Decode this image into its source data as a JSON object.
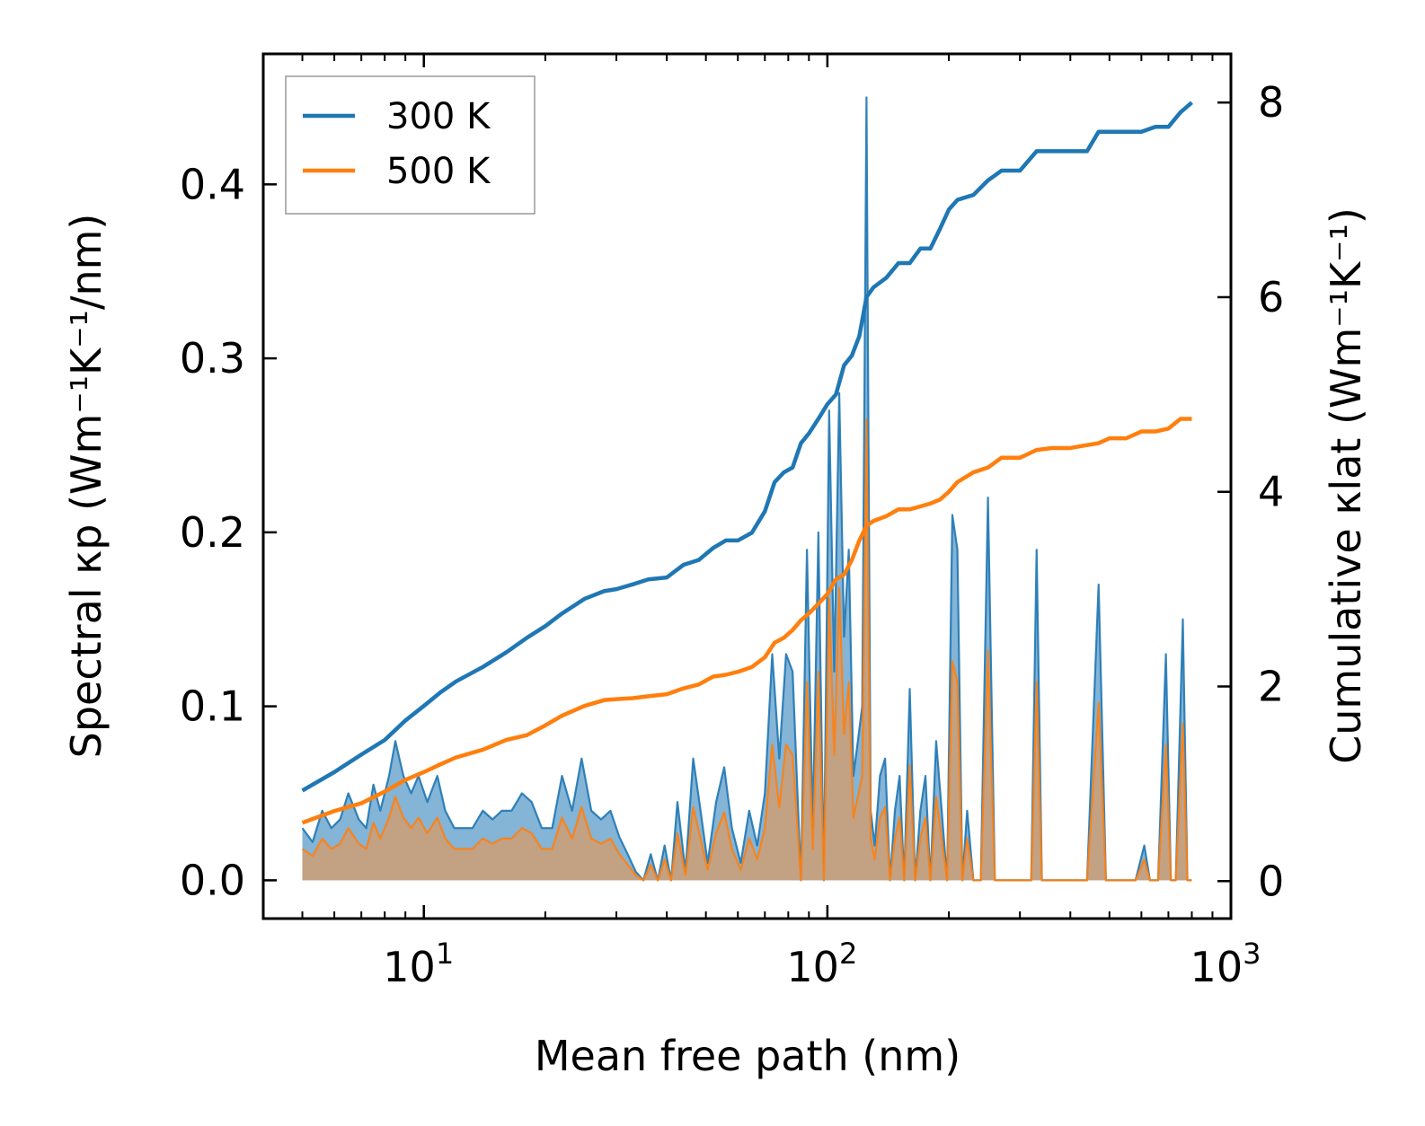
{
  "chart_data": {
    "type": "line",
    "title": "",
    "xlabel": "Mean free path (nm)",
    "ylabel_left": "Spectral κp (Wm⁻¹K⁻¹/nm)",
    "ylabel_right": "Cumulative κlat (Wm⁻¹K⁻¹)",
    "xscale": "log",
    "xlim": [
      4.0,
      1000
    ],
    "ylim_left": [
      -0.022,
      0.475
    ],
    "ylim_right": [
      -0.385,
      8.5
    ],
    "x_ticks": [
      {
        "value": 10,
        "base": "10",
        "exp": "1"
      },
      {
        "value": 100,
        "base": "10",
        "exp": "2"
      },
      {
        "value": 1000,
        "base": "10",
        "exp": "3"
      }
    ],
    "y_ticks_left": [
      {
        "value": 0.0,
        "label": "0.0"
      },
      {
        "value": 0.1,
        "label": "0.1"
      },
      {
        "value": 0.2,
        "label": "0.2"
      },
      {
        "value": 0.3,
        "label": "0.3"
      },
      {
        "value": 0.4,
        "label": "0.4"
      }
    ],
    "y_ticks_right": [
      {
        "value": 0,
        "label": "0"
      },
      {
        "value": 2,
        "label": "2"
      },
      {
        "value": 4,
        "label": "4"
      },
      {
        "value": 6,
        "label": "6"
      },
      {
        "value": 8,
        "label": "8"
      }
    ],
    "legend": {
      "position": "top-left",
      "entries": [
        "300 K",
        "500 K"
      ]
    },
    "colors": {
      "300K": "#1f77b4",
      "500K": "#ff7f0e",
      "fill_300K": "#1f77b4",
      "fill_500K": "#d39c6e"
    },
    "spectral_series": [
      {
        "name": "300 K",
        "x": [
          5.0,
          5.3,
          5.6,
          5.9,
          6.2,
          6.5,
          6.9,
          7.2,
          7.5,
          7.8,
          8.2,
          8.5,
          8.9,
          9.3,
          9.7,
          10.2,
          10.8,
          11.3,
          11.9,
          12.5,
          13.2,
          14.0,
          14.8,
          15.6,
          16.5,
          17.5,
          18.5,
          19.6,
          20.8,
          22.0,
          23.3,
          24.6,
          26.0,
          27.5,
          29.0,
          30.5,
          32.0,
          33.5,
          35.0,
          36.5,
          38.0,
          39.5,
          41.0,
          42.5,
          44.5,
          46.5,
          48.5,
          50.5,
          53.0,
          55.5,
          58.0,
          61.0,
          64.0,
          67.0,
          70.0,
          73.0,
          76.0,
          79.0,
          82.0,
          86.0,
          89.0,
          92.0,
          95.0,
          98.0,
          101.0,
          104.0,
          107.0,
          110.0,
          113.0,
          116.0,
          119.0,
          122.0,
          125.0,
          128.0,
          131.0,
          135.0,
          139.0,
          143.0,
          147.0,
          151.0,
          155.0,
          160.0,
          165.0,
          170.0,
          175.0,
          180.0,
          186.0,
          192.0,
          198.0,
          204.0,
          210.0,
          216.0,
          222.0,
          230.0,
          240.0,
          250.0,
          260.0,
          270.0,
          280.0,
          300.0,
          320.0,
          330.0,
          340.0,
          360.0,
          400.0,
          440.0,
          470.0,
          490.0,
          510.0,
          540.0,
          580.0,
          610.0,
          630.0,
          660.0,
          690.0,
          710.0,
          730.0,
          760.0,
          780.0,
          800.0
        ],
        "y": [
          0.03,
          0.022,
          0.04,
          0.03,
          0.035,
          0.05,
          0.035,
          0.03,
          0.055,
          0.04,
          0.06,
          0.08,
          0.06,
          0.05,
          0.06,
          0.045,
          0.06,
          0.04,
          0.03,
          0.03,
          0.03,
          0.04,
          0.035,
          0.04,
          0.04,
          0.05,
          0.045,
          0.03,
          0.03,
          0.06,
          0.04,
          0.07,
          0.04,
          0.035,
          0.04,
          0.025,
          0.015,
          0.005,
          0.0,
          0.015,
          0.0,
          0.02,
          0.0,
          0.045,
          0.005,
          0.07,
          0.04,
          0.01,
          0.045,
          0.065,
          0.03,
          0.01,
          0.04,
          0.02,
          0.05,
          0.13,
          0.07,
          0.13,
          0.12,
          0.0,
          0.19,
          0.03,
          0.2,
          0.0,
          0.27,
          0.12,
          0.28,
          0.14,
          0.19,
          0.06,
          0.08,
          0.1,
          0.45,
          0.04,
          0.02,
          0.06,
          0.07,
          0.0,
          0.04,
          0.06,
          0.0,
          0.11,
          0.0,
          0.04,
          0.06,
          0.0,
          0.08,
          0.04,
          0.0,
          0.21,
          0.19,
          0.0,
          0.04,
          0.0,
          0.0,
          0.22,
          0.0,
          0.0,
          0.0,
          0.0,
          0.0,
          0.19,
          0.0,
          0.0,
          0.0,
          0.0,
          0.17,
          0.0,
          0.0,
          0.0,
          0.0,
          0.02,
          0.0,
          0.0,
          0.13,
          0.0,
          0.0,
          0.15,
          0.0,
          0.0
        ]
      },
      {
        "name": "500 K",
        "x": [
          5.0,
          5.3,
          5.6,
          5.9,
          6.2,
          6.5,
          6.9,
          7.2,
          7.5,
          7.8,
          8.2,
          8.5,
          8.9,
          9.3,
          9.7,
          10.2,
          10.8,
          11.3,
          11.9,
          12.5,
          13.2,
          14.0,
          14.8,
          15.6,
          16.5,
          17.5,
          18.5,
          19.6,
          20.8,
          22.0,
          23.3,
          24.6,
          26.0,
          27.5,
          29.0,
          30.5,
          32.0,
          33.5,
          35.0,
          36.5,
          38.0,
          39.5,
          41.0,
          42.5,
          44.5,
          46.5,
          48.5,
          50.5,
          53.0,
          55.5,
          58.0,
          61.0,
          64.0,
          67.0,
          70.0,
          73.0,
          76.0,
          79.0,
          82.0,
          86.0,
          89.0,
          92.0,
          95.0,
          98.0,
          101.0,
          104.0,
          107.0,
          110.0,
          113.0,
          116.0,
          119.0,
          122.0,
          125.0,
          128.0,
          131.0,
          135.0,
          139.0,
          143.0,
          147.0,
          151.0,
          155.0,
          160.0,
          165.0,
          170.0,
          175.0,
          180.0,
          186.0,
          192.0,
          198.0,
          204.0,
          210.0,
          216.0,
          222.0,
          230.0,
          240.0,
          250.0,
          260.0,
          270.0,
          280.0,
          300.0,
          320.0,
          330.0,
          340.0,
          360.0,
          400.0,
          440.0,
          470.0,
          490.0,
          510.0,
          540.0,
          580.0,
          610.0,
          630.0,
          660.0,
          690.0,
          710.0,
          730.0,
          760.0,
          780.0,
          800.0
        ],
        "y": [
          0.018,
          0.014,
          0.024,
          0.018,
          0.021,
          0.03,
          0.021,
          0.018,
          0.033,
          0.024,
          0.036,
          0.048,
          0.036,
          0.03,
          0.036,
          0.027,
          0.036,
          0.024,
          0.018,
          0.018,
          0.018,
          0.024,
          0.021,
          0.024,
          0.024,
          0.03,
          0.027,
          0.018,
          0.018,
          0.036,
          0.024,
          0.042,
          0.024,
          0.021,
          0.024,
          0.015,
          0.009,
          0.003,
          0.0,
          0.009,
          0.0,
          0.012,
          0.0,
          0.027,
          0.003,
          0.042,
          0.024,
          0.006,
          0.027,
          0.039,
          0.018,
          0.006,
          0.024,
          0.012,
          0.03,
          0.078,
          0.042,
          0.078,
          0.072,
          0.0,
          0.114,
          0.018,
          0.12,
          0.0,
          0.162,
          0.072,
          0.168,
          0.084,
          0.114,
          0.036,
          0.048,
          0.06,
          0.265,
          0.024,
          0.012,
          0.036,
          0.042,
          0.0,
          0.024,
          0.036,
          0.0,
          0.066,
          0.0,
          0.024,
          0.036,
          0.0,
          0.048,
          0.024,
          0.0,
          0.126,
          0.114,
          0.0,
          0.024,
          0.0,
          0.0,
          0.132,
          0.0,
          0.0,
          0.0,
          0.0,
          0.0,
          0.114,
          0.0,
          0.0,
          0.0,
          0.0,
          0.102,
          0.0,
          0.0,
          0.0,
          0.0,
          0.012,
          0.0,
          0.0,
          0.078,
          0.0,
          0.0,
          0.09,
          0.0,
          0.0
        ]
      }
    ],
    "cumulative_series": [
      {
        "name": "300 K",
        "x": [
          5.0,
          6.0,
          7.0,
          8.0,
          9.0,
          10.0,
          11.0,
          12.0,
          14.0,
          16.0,
          18.0,
          20.0,
          22.0,
          25.0,
          28.0,
          30.0,
          33.0,
          36.0,
          40.0,
          44.0,
          48.0,
          52.0,
          56.0,
          60.0,
          65.0,
          70.0,
          74.0,
          78.0,
          82.0,
          86.0,
          90.0,
          95.0,
          100.0,
          105.0,
          110.0,
          115.0,
          120.0,
          125.0,
          130.0,
          140.0,
          150.0,
          160.0,
          170.0,
          180.0,
          190.0,
          200.0,
          210.0,
          230.0,
          250.0,
          270.0,
          300.0,
          330.0,
          360.0,
          400.0,
          440.0,
          470.0,
          500.0,
          550.0,
          600.0,
          650.0,
          700.0,
          750.0,
          800.0
        ],
        "y": [
          0.93,
          1.12,
          1.3,
          1.45,
          1.65,
          1.8,
          1.94,
          2.05,
          2.2,
          2.35,
          2.5,
          2.62,
          2.75,
          2.9,
          2.98,
          3.0,
          3.05,
          3.1,
          3.12,
          3.25,
          3.3,
          3.42,
          3.5,
          3.5,
          3.58,
          3.8,
          4.1,
          4.2,
          4.25,
          4.5,
          4.6,
          4.75,
          4.9,
          5.0,
          5.3,
          5.4,
          5.6,
          6.0,
          6.1,
          6.2,
          6.35,
          6.35,
          6.5,
          6.5,
          6.7,
          6.9,
          7.0,
          7.05,
          7.2,
          7.3,
          7.3,
          7.5,
          7.5,
          7.5,
          7.5,
          7.7,
          7.7,
          7.7,
          7.7,
          7.75,
          7.75,
          7.9,
          8.0
        ]
      },
      {
        "name": "500 K",
        "x": [
          5.0,
          6.0,
          7.0,
          8.0,
          9.0,
          10.0,
          11.0,
          12.0,
          14.0,
          16.0,
          18.0,
          20.0,
          22.0,
          25.0,
          28.0,
          30.0,
          33.0,
          36.0,
          40.0,
          44.0,
          48.0,
          52.0,
          56.0,
          60.0,
          65.0,
          70.0,
          74.0,
          78.0,
          82.0,
          86.0,
          90.0,
          95.0,
          100.0,
          105.0,
          110.0,
          115.0,
          120.0,
          125.0,
          130.0,
          140.0,
          150.0,
          160.0,
          170.0,
          180.0,
          190.0,
          200.0,
          210.0,
          230.0,
          250.0,
          270.0,
          300.0,
          330.0,
          360.0,
          400.0,
          440.0,
          470.0,
          500.0,
          550.0,
          600.0,
          650.0,
          700.0,
          750.0,
          800.0
        ],
        "y": [
          0.6,
          0.72,
          0.8,
          0.92,
          1.04,
          1.12,
          1.2,
          1.27,
          1.35,
          1.45,
          1.5,
          1.6,
          1.7,
          1.8,
          1.86,
          1.87,
          1.88,
          1.9,
          1.92,
          1.98,
          2.02,
          2.1,
          2.12,
          2.15,
          2.2,
          2.3,
          2.45,
          2.5,
          2.58,
          2.68,
          2.75,
          2.85,
          2.95,
          3.1,
          3.15,
          3.3,
          3.5,
          3.65,
          3.7,
          3.75,
          3.82,
          3.82,
          3.85,
          3.88,
          3.92,
          4.0,
          4.1,
          4.2,
          4.25,
          4.35,
          4.35,
          4.43,
          4.45,
          4.45,
          4.48,
          4.5,
          4.55,
          4.55,
          4.62,
          4.62,
          4.65,
          4.75,
          4.75
        ]
      }
    ]
  }
}
